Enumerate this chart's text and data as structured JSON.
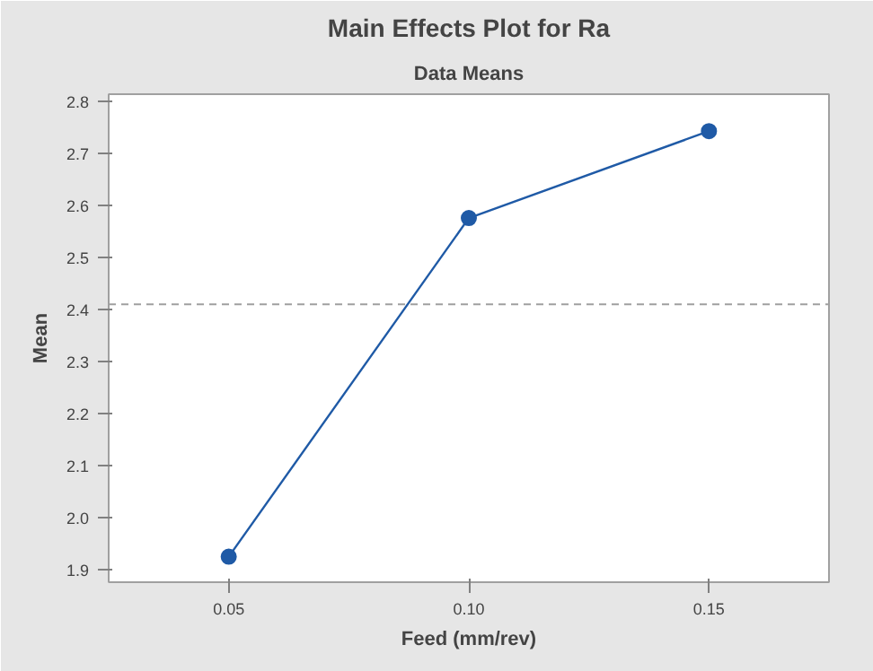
{
  "chart_data": {
    "type": "line",
    "title": "Main Effects Plot for Ra",
    "subtitle": "Data Means",
    "xlabel": "Feed (mm/rev)",
    "ylabel": "Mean",
    "x": [
      0.05,
      0.1,
      0.15
    ],
    "series": [
      {
        "color": "#1f5aa6",
        "values": [
          1.925,
          2.576,
          2.743
        ]
      }
    ],
    "xlim": [
      0.025,
      0.175
    ],
    "xticks": [
      {
        "value": 0.05,
        "label": "0.05"
      },
      {
        "value": 0.1,
        "label": "0.10"
      },
      {
        "value": 0.15,
        "label": "0.15"
      }
    ],
    "ylim": [
      1.876,
      2.814
    ],
    "yticks": [
      {
        "value": 1.9,
        "label": "1.9"
      },
      {
        "value": 2.0,
        "label": "2.0"
      },
      {
        "value": 2.1,
        "label": "2.1"
      },
      {
        "value": 2.2,
        "label": "2.2"
      },
      {
        "value": 2.3,
        "label": "2.3"
      },
      {
        "value": 2.4,
        "label": "2.4"
      },
      {
        "value": 2.5,
        "label": "2.5"
      },
      {
        "value": 2.6,
        "label": "2.6"
      },
      {
        "value": 2.7,
        "label": "2.7"
      },
      {
        "value": 2.8,
        "label": "2.8"
      }
    ],
    "ref_lines": [
      {
        "axis": "y",
        "value": 2.41,
        "color": "#a0a0a0",
        "line_style": "dashed"
      }
    ],
    "marker": "circle",
    "line_style": "solid",
    "grid": false
  }
}
